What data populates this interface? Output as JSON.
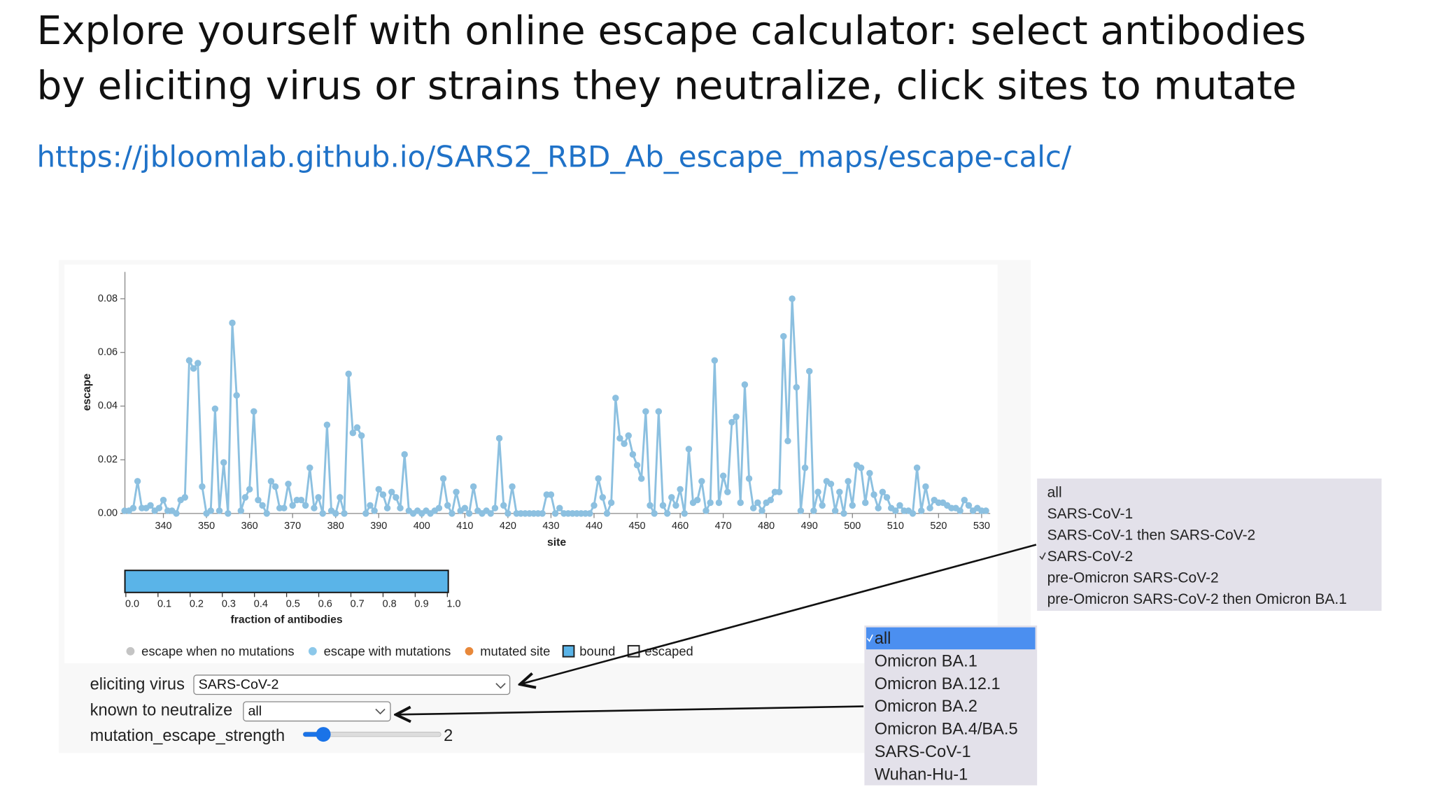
{
  "header": {
    "title_lines": [
      "Explore yourself with online escape calculator: select antibodies",
      "by eliciting virus or strains they neutralize, click sites to mutate"
    ],
    "url": "https://jbloomlab.github.io/SARS2_RBD_Ab_escape_maps/escape-calc/"
  },
  "chart_data": {
    "type": "line",
    "x_label": "site",
    "y_label": "escape",
    "color": "#8cc0e0",
    "x": [
      331,
      332,
      333,
      334,
      335,
      336,
      337,
      338,
      339,
      340,
      341,
      342,
      343,
      344,
      345,
      346,
      347,
      348,
      349,
      350,
      351,
      352,
      353,
      354,
      355,
      356,
      357,
      358,
      359,
      360,
      361,
      362,
      363,
      364,
      365,
      366,
      367,
      368,
      369,
      370,
      371,
      372,
      373,
      374,
      375,
      376,
      377,
      378,
      379,
      380,
      381,
      382,
      383,
      384,
      385,
      386,
      387,
      388,
      389,
      390,
      391,
      392,
      393,
      394,
      395,
      396,
      397,
      398,
      399,
      400,
      401,
      402,
      403,
      404,
      405,
      406,
      407,
      408,
      409,
      410,
      411,
      412,
      413,
      414,
      415,
      416,
      417,
      418,
      419,
      420,
      421,
      422,
      423,
      424,
      425,
      426,
      427,
      428,
      429,
      430,
      431,
      432,
      433,
      434,
      435,
      436,
      437,
      438,
      439,
      440,
      441,
      442,
      443,
      444,
      445,
      446,
      447,
      448,
      449,
      450,
      451,
      452,
      453,
      454,
      455,
      456,
      457,
      458,
      459,
      460,
      461,
      462,
      463,
      464,
      465,
      466,
      467,
      468,
      469,
      470,
      471,
      472,
      473,
      474,
      475,
      476,
      477,
      478,
      479,
      480,
      481,
      482,
      483,
      484,
      485,
      486,
      487,
      488,
      489,
      490,
      491,
      492,
      493,
      494,
      495,
      496,
      497,
      498,
      499,
      500,
      501,
      502,
      503,
      504,
      505,
      506,
      507,
      508,
      509,
      510,
      511,
      512,
      513,
      514,
      515,
      516,
      517,
      518,
      519,
      520,
      521,
      522,
      523,
      524,
      525,
      526,
      527,
      528,
      529,
      530,
      531
    ],
    "values": [
      0.001,
      0.001,
      0.002,
      0.012,
      0.002,
      0.002,
      0.003,
      0.001,
      0.002,
      0.005,
      0.001,
      0.001,
      0,
      0.005,
      0.006,
      0.057,
      0.054,
      0.056,
      0.01,
      0,
      0.001,
      0.039,
      0.001,
      0.019,
      0,
      0.071,
      0.044,
      0.001,
      0.006,
      0.009,
      0.038,
      0.005,
      0.003,
      0,
      0.012,
      0.01,
      0.002,
      0.002,
      0.011,
      0.003,
      0.005,
      0.005,
      0.003,
      0.017,
      0.002,
      0.006,
      0,
      0.033,
      0.001,
      0,
      0.006,
      0,
      0.052,
      0.03,
      0.032,
      0.029,
      0,
      0.003,
      0.001,
      0.009,
      0.007,
      0.002,
      0.008,
      0.006,
      0.002,
      0.022,
      0.001,
      0,
      0.001,
      0,
      0.001,
      0,
      0.001,
      0.002,
      0.013,
      0.003,
      0,
      0.008,
      0.001,
      0.002,
      0,
      0.01,
      0.001,
      0,
      0.001,
      0,
      0.002,
      0.028,
      0.003,
      0,
      0.01,
      0,
      0,
      0,
      0,
      0,
      0,
      0,
      0.007,
      0.007,
      0,
      0.002,
      0,
      0,
      0,
      0,
      0,
      0,
      0,
      0.003,
      0.013,
      0.006,
      0,
      0.004,
      0.043,
      0.028,
      0.026,
      0.029,
      0.022,
      0.018,
      0.013,
      0.038,
      0.003,
      0,
      0.038,
      0.003,
      0,
      0.006,
      0.003,
      0.009,
      0,
      0.024,
      0.004,
      0.005,
      0.012,
      0.001,
      0.004,
      0.057,
      0.004,
      0.014,
      0.008,
      0.034,
      0.036,
      0.004,
      0.048,
      0.013,
      0.002,
      0.004,
      0.001,
      0.004,
      0.005,
      0.008,
      0.008,
      0.066,
      0.027,
      0.08,
      0.047,
      0.001,
      0.017,
      0.053,
      0.001,
      0.008,
      0.003,
      0.012,
      0.011,
      0.001,
      0.008,
      0,
      0.012,
      0.003,
      0.018,
      0.017,
      0.004,
      0.015,
      0.007,
      0.002,
      0.008,
      0.006,
      0.002,
      0.001,
      0.003,
      0.001,
      0.001,
      0,
      0.017,
      0.001,
      0.01,
      0.002,
      0.005,
      0.004,
      0.004,
      0.003,
      0.002,
      0.002,
      0.001,
      0.005,
      0.003,
      0.001,
      0.002,
      0.001,
      0.001
    ],
    "xlim": [
      330,
      532
    ],
    "xticks": [
      340,
      350,
      360,
      370,
      380,
      390,
      400,
      410,
      420,
      430,
      440,
      450,
      460,
      470,
      480,
      490,
      500,
      510,
      520,
      530
    ],
    "ylim": [
      0,
      0.09
    ],
    "yticks": [
      {
        "value": 0,
        "label": "0.00"
      },
      0.02,
      0.04,
      0.06,
      0.08
    ],
    "colorbar": {
      "title": "fraction of antibodies",
      "color": "#5ab4e8",
      "lim": [
        0,
        1
      ],
      "ticks": [
        {
          "value": 0,
          "label": "0.0"
        },
        0.1,
        0.2,
        0.3,
        0.4,
        0.5,
        0.6,
        0.7,
        0.8,
        0.9,
        {
          "value": 1,
          "label": "1.0"
        }
      ]
    },
    "legend": [
      {
        "name": "escape when no mutations",
        "color": "#c4c4c4",
        "shape": "circle"
      },
      {
        "name": "escape with mutations",
        "color": "#8cc8ea",
        "shape": "circle"
      },
      {
        "name": "mutated site",
        "color": "#e8883a",
        "shape": "circle"
      },
      {
        "name": "bound",
        "color": "#5ab4e8",
        "shape": "square"
      },
      {
        "name": "escaped",
        "color": "#f4f4f4",
        "shape": "square"
      }
    ]
  },
  "controls": [
    {
      "label": "eliciting virus",
      "value": "SARS-CoV-2"
    },
    {
      "label": "known to neutralize",
      "value": "all"
    },
    {
      "label": "mutation_escape_strength",
      "value": 2
    }
  ],
  "dropdowns": [
    {
      "items": [
        "all",
        "SARS-CoV-1",
        "SARS-CoV-1 then SARS-CoV-2",
        "SARS-CoV-2",
        "pre-Omicron SARS-CoV-2",
        "pre-Omicron SARS-CoV-2 then Omicron BA.1"
      ],
      "selected": 3
    },
    {
      "items": [
        "all",
        "Omicron BA.1",
        "Omicron BA.12.1",
        "Omicron BA.2",
        "Omicron BA.4/BA.5",
        "SARS-CoV-1",
        "Wuhan-Hu-1"
      ],
      "selected": 0
    }
  ]
}
